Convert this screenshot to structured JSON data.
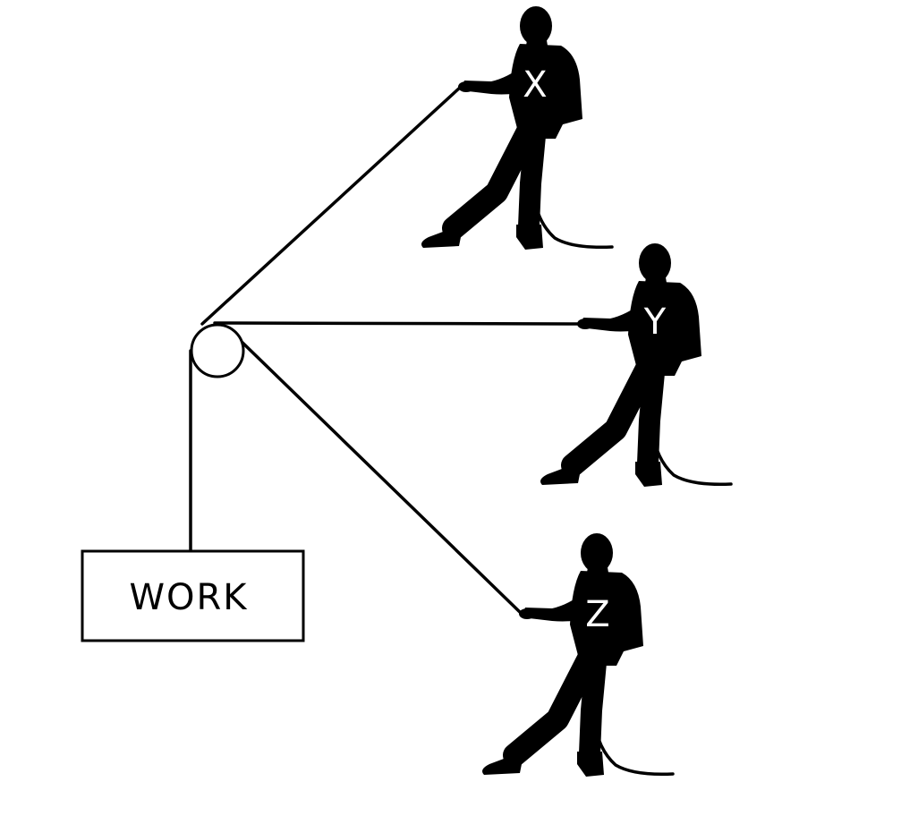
{
  "work_label": "WORK",
  "pullers": [
    {
      "id": "x",
      "label": "X"
    },
    {
      "id": "y",
      "label": "Y"
    },
    {
      "id": "z",
      "label": "Z"
    }
  ],
  "colors": {
    "foreground": "#000000",
    "background": "#ffffff",
    "label": "#ffffff"
  }
}
